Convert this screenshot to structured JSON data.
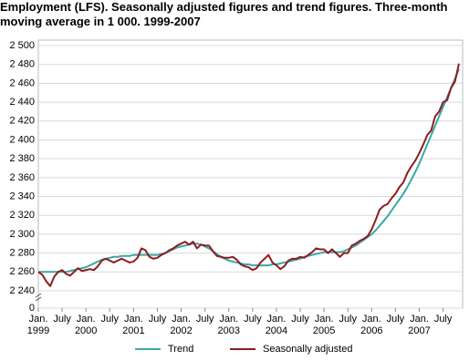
{
  "chart_data": {
    "type": "line",
    "title": "Employment (LFS). Seasonally adjusted figures and trend figures. Three-month moving average in 1 000. 1999-2007",
    "categories": [
      "Jan. 1999",
      null,
      null,
      null,
      null,
      null,
      "July",
      null,
      null,
      null,
      null,
      null,
      "Jan. 2000",
      null,
      null,
      null,
      null,
      null,
      "July",
      null,
      null,
      null,
      null,
      null,
      "Jan. 2001",
      null,
      null,
      null,
      null,
      null,
      "July",
      null,
      null,
      null,
      null,
      null,
      "Jan. 2002",
      null,
      null,
      null,
      null,
      null,
      "July",
      null,
      null,
      null,
      null,
      null,
      "Jan. 2003",
      null,
      null,
      null,
      null,
      null,
      "July",
      null,
      null,
      null,
      null,
      null,
      "Jan. 2004",
      null,
      null,
      null,
      null,
      null,
      "July",
      null,
      null,
      null,
      null,
      null,
      "Jan. 2005",
      null,
      null,
      null,
      null,
      null,
      "July",
      null,
      null,
      null,
      null,
      null,
      "Jan. 2006",
      null,
      null,
      null,
      null,
      null,
      "July",
      null,
      null,
      null,
      null,
      null,
      "Jan. 2007",
      null,
      null,
      null,
      null,
      null,
      "July",
      null,
      null,
      null,
      null
    ],
    "series": [
      {
        "name": "Trend",
        "color": "#3aa8a6",
        "values": [
          2260,
          2260,
          2260,
          2260,
          2260,
          2260,
          2260,
          2260,
          2261,
          2262,
          2263,
          2264,
          2265,
          2267,
          2269,
          2271,
          2273,
          2274,
          2275,
          2276,
          2276,
          2277,
          2277,
          2277,
          2278,
          2278,
          2278,
          2278,
          2278,
          2278,
          2278,
          2279,
          2280,
          2282,
          2284,
          2286,
          2287,
          2288,
          2289,
          2290,
          2290,
          2289,
          2287,
          2285,
          2282,
          2279,
          2276,
          2274,
          2272,
          2271,
          2270,
          2269,
          2268,
          2268,
          2267,
          2267,
          2267,
          2267,
          2267,
          2268,
          2268,
          2269,
          2270,
          2271,
          2272,
          2273,
          2274,
          2276,
          2277,
          2278,
          2279,
          2280,
          2281,
          2281,
          2281,
          2281,
          2281,
          2282,
          2284,
          2286,
          2288,
          2291,
          2294,
          2297,
          2300,
          2304,
          2309,
          2314,
          2319,
          2325,
          2331,
          2337,
          2343,
          2350,
          2358,
          2366,
          2375,
          2385,
          2395,
          2405,
          2415,
          2425,
          2435,
          2445,
          2455,
          2465,
          2475
        ]
      },
      {
        "name": "Seasonally adjusted",
        "color": "#8c1c1f",
        "values": [
          2260,
          2257,
          2250,
          2245,
          2255,
          2260,
          2262,
          2258,
          2256,
          2260,
          2264,
          2261,
          2262,
          2263,
          2262,
          2266,
          2272,
          2274,
          2272,
          2270,
          2272,
          2274,
          2272,
          2270,
          2271,
          2275,
          2285,
          2283,
          2276,
          2274,
          2275,
          2278,
          2280,
          2283,
          2285,
          2288,
          2290,
          2292,
          2289,
          2292,
          2285,
          2289,
          2288,
          2288,
          2282,
          2277,
          2276,
          2275,
          2275,
          2276,
          2273,
          2268,
          2266,
          2265,
          2262,
          2264,
          2270,
          2274,
          2278,
          2270,
          2267,
          2263,
          2266,
          2272,
          2274,
          2274,
          2276,
          2275,
          2278,
          2281,
          2285,
          2284,
          2284,
          2280,
          2284,
          2280,
          2276,
          2280,
          2280,
          2288,
          2290,
          2293,
          2295,
          2298,
          2305,
          2315,
          2326,
          2330,
          2332,
          2338,
          2343,
          2350,
          2355,
          2365,
          2372,
          2378,
          2386,
          2395,
          2405,
          2410,
          2425,
          2430,
          2440,
          2442,
          2455,
          2462,
          2481
        ]
      }
    ],
    "ylim": [
      0,
      2500
    ],
    "axis_break": [
      0,
      2240
    ],
    "yticks": [
      0,
      {
        "value": 2240,
        "label": "2 240"
      },
      {
        "value": 2260,
        "label": "2 260"
      },
      {
        "value": 2280,
        "label": "2 280"
      },
      {
        "value": 2300,
        "label": "2 300"
      },
      {
        "value": 2320,
        "label": "2 320"
      },
      {
        "value": 2340,
        "label": "2 340"
      },
      {
        "value": 2360,
        "label": "2 360"
      },
      {
        "value": 2380,
        "label": "2 380"
      },
      {
        "value": 2400,
        "label": "2 400"
      },
      {
        "value": 2420,
        "label": "2 420"
      },
      {
        "value": 2440,
        "label": "2 440"
      },
      {
        "value": 2460,
        "label": "2 460"
      },
      {
        "value": 2480,
        "label": "2 480"
      },
      {
        "value": 2500,
        "label": "2 500"
      }
    ],
    "grid": true
  }
}
